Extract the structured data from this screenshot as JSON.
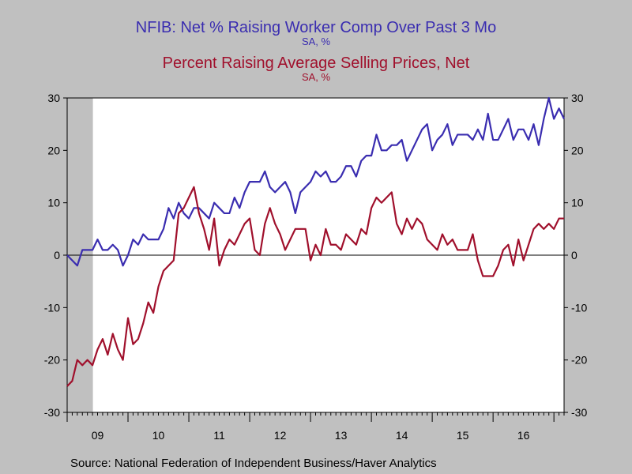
{
  "chart_data": {
    "type": "line",
    "title": "NFIB: Net  % Raising Worker Comp Over Past 3 Mo",
    "title_unit": "SA, %",
    "subtitle": "Percent Raising Average Selling Prices, Net",
    "subtitle_unit": "SA, %",
    "source": "Source:  National Federation of Independent Business/Haver Analytics",
    "ylim": [
      -30,
      30
    ],
    "yticks": [
      -30,
      -20,
      -10,
      0,
      10,
      20,
      30
    ],
    "x_start": "2009-01",
    "x_end": "2017-03",
    "xtick_labels": [
      {
        "label": "09",
        "year": 2009
      },
      {
        "label": "10",
        "year": 2010
      },
      {
        "label": "11",
        "year": 2011
      },
      {
        "label": "12",
        "year": 2012
      },
      {
        "label": "13",
        "year": 2013
      },
      {
        "label": "14",
        "year": 2014
      },
      {
        "label": "15",
        "year": 2015
      },
      {
        "label": "16",
        "year": 2016
      }
    ],
    "recession_shading": [
      "2009-01",
      "2009-06"
    ],
    "zero_line": true,
    "grid": false,
    "colors": {
      "series1": "#3a2db0",
      "series2": "#a0102c",
      "recession": "#c0c0c0",
      "plot_bg": "#ffffff",
      "page_bg": "#c0c0c0"
    },
    "series": [
      {
        "key": "worker_comp",
        "axis": "left",
        "values": [
          0,
          -1,
          -2,
          1,
          1,
          1,
          3,
          1,
          1,
          2,
          1,
          -2,
          0,
          3,
          2,
          4,
          3,
          3,
          3,
          5,
          9,
          7,
          10,
          8,
          7,
          9,
          9,
          8,
          7,
          10,
          9,
          8,
          8,
          11,
          9,
          12,
          14,
          14,
          14,
          16,
          13,
          12,
          13,
          14,
          12,
          8,
          12,
          13,
          14,
          16,
          15,
          16,
          14,
          14,
          15,
          17,
          17,
          15,
          18,
          19,
          19,
          23,
          20,
          20,
          21,
          21,
          22,
          18,
          20,
          22,
          24,
          25,
          20,
          22,
          23,
          25,
          21,
          23,
          23,
          23,
          22,
          24,
          22,
          27,
          22,
          22,
          24,
          26,
          22,
          24,
          24,
          22,
          25,
          21,
          26,
          30,
          26,
          28,
          26
        ]
      },
      {
        "key": "selling_prices",
        "axis": "left",
        "values": [
          -25,
          -24,
          -20,
          -21,
          -20,
          -21,
          -18,
          -16,
          -19,
          -15,
          -18,
          -20,
          -12,
          -17,
          -16,
          -13,
          -9,
          -11,
          -6,
          -3,
          -2,
          -1,
          8,
          9,
          11,
          13,
          8,
          5,
          1,
          7,
          -2,
          1,
          3,
          2,
          4,
          6,
          7,
          1,
          0,
          6,
          9,
          6,
          4,
          1,
          3,
          5,
          5,
          5,
          -1,
          2,
          0,
          5,
          2,
          2,
          1,
          4,
          3,
          2,
          5,
          4,
          9,
          11,
          10,
          11,
          12,
          6,
          4,
          7,
          5,
          7,
          6,
          3,
          2,
          1,
          4,
          2,
          3,
          1,
          1,
          1,
          4,
          -1,
          -4,
          -4,
          -4,
          -2,
          1,
          2,
          -2,
          3,
          -1,
          2,
          5,
          6,
          5,
          6,
          5,
          7,
          7
        ]
      }
    ]
  }
}
